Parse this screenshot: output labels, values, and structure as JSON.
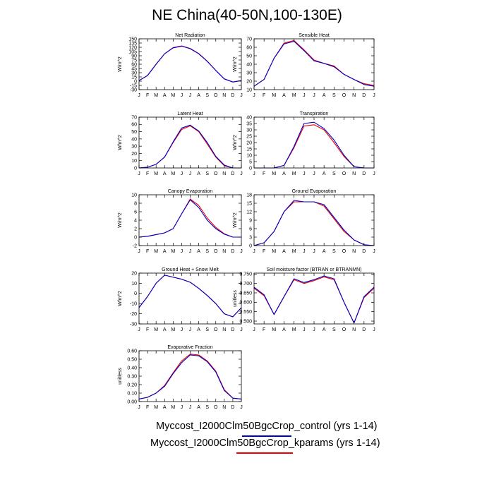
{
  "figure_title": "NE China(40-50N,100-130E)",
  "months": [
    "J",
    "F",
    "M",
    "A",
    "M",
    "J",
    "J",
    "A",
    "S",
    "O",
    "N",
    "D",
    "J"
  ],
  "colors": {
    "control": "#0000cc",
    "kparams": "#ee0000",
    "axis": "#000000"
  },
  "legend": [
    {
      "label": "Myccost_I2000Clm50BgcCrop_control (yrs 1-14)",
      "color": "#0000cc"
    },
    {
      "label": "Myccost_I2000Clm50BgcCrop_kparams (yrs 1-14)",
      "color": "#ee0000"
    }
  ],
  "chart_data": [
    {
      "type": "line",
      "title": "Net Radiation",
      "ylabel": "W/m^2",
      "ylim": [
        -30,
        150
      ],
      "yticks": [
        -30,
        -15,
        0,
        15,
        30,
        45,
        60,
        75,
        90,
        105,
        120,
        135,
        150
      ],
      "series": [
        {
          "name": "Myccost_I2000Clm50BgcCrop_control (yrs 1-14)",
          "values": [
            2,
            20,
            60,
            97,
            118,
            124,
            115,
            97,
            70,
            38,
            8,
            -3,
            2
          ]
        },
        {
          "name": "Myccost_I2000Clm50BgcCrop_kparams (yrs 1-14)",
          "values": [
            2,
            20,
            60,
            97,
            119,
            125,
            116,
            98,
            71,
            38,
            8,
            -3,
            2
          ]
        }
      ]
    },
    {
      "type": "line",
      "title": "Sensible Heat",
      "ylabel": "W/m^2",
      "ylim": [
        10,
        70
      ],
      "yticks": [
        10,
        20,
        30,
        40,
        50,
        60,
        70
      ],
      "series": [
        {
          "name": "Myccost_I2000Clm50BgcCrop_control (yrs 1-14)",
          "values": [
            14,
            22,
            47,
            64,
            67,
            56,
            44,
            41,
            37,
            28,
            22,
            16,
            14
          ]
        },
        {
          "name": "Myccost_I2000Clm50BgcCrop_kparams (yrs 1-14)",
          "values": [
            14,
            22,
            47,
            65,
            68,
            57,
            45,
            41,
            38,
            28,
            22,
            17,
            15
          ]
        }
      ]
    },
    {
      "type": "line",
      "title": "Latent Heat",
      "ylabel": "W/m^2",
      "ylim": [
        0,
        70
      ],
      "yticks": [
        0,
        10,
        20,
        30,
        40,
        50,
        60,
        70
      ],
      "series": [
        {
          "name": "Myccost_I2000Clm50BgcCrop_control (yrs 1-14)",
          "values": [
            0,
            1,
            5,
            15,
            36,
            55,
            59,
            51,
            35,
            16,
            4,
            0,
            0
          ]
        },
        {
          "name": "Myccost_I2000Clm50BgcCrop_kparams (yrs 1-14)",
          "values": [
            0,
            1,
            5,
            15,
            35,
            53,
            58,
            50,
            33,
            15,
            3,
            0,
            0
          ]
        }
      ]
    },
    {
      "type": "line",
      "title": "Transpiration",
      "ylabel": "W/m^2",
      "ylim": [
        0,
        40
      ],
      "yticks": [
        0,
        5,
        10,
        15,
        20,
        25,
        30,
        35,
        40
      ],
      "series": [
        {
          "name": "Myccost_I2000Clm50BgcCrop_control (yrs 1-14)",
          "values": [
            0,
            0,
            0,
            2,
            17,
            35,
            36,
            31,
            22,
            10,
            1,
            0,
            0
          ]
        },
        {
          "name": "Myccost_I2000Clm50BgcCrop_kparams (yrs 1-14)",
          "values": [
            0,
            0,
            0,
            2,
            16,
            33,
            34,
            30,
            20,
            9,
            1,
            0,
            0
          ]
        }
      ]
    },
    {
      "type": "line",
      "title": "Canopy Evaporation",
      "ylabel": "W/m^2",
      "ylim": [
        -2,
        10
      ],
      "yticks": [
        -2,
        0,
        2,
        4,
        6,
        8,
        10
      ],
      "series": [
        {
          "name": "Myccost_I2000Clm50BgcCrop_control (yrs 1-14)",
          "values": [
            0,
            0.2,
            0.6,
            1,
            2,
            5.5,
            8.8,
            7,
            4,
            2,
            0.7,
            0,
            0
          ]
        },
        {
          "name": "Myccost_I2000Clm50BgcCrop_kparams (yrs 1-14)",
          "values": [
            0,
            0.2,
            0.6,
            1,
            2,
            5.5,
            9,
            7.5,
            4.5,
            2.3,
            0.8,
            0,
            0
          ]
        }
      ]
    },
    {
      "type": "line",
      "title": "Ground Evaporation",
      "ylabel": "W/m^2",
      "ylim": [
        0,
        18
      ],
      "yticks": [
        0,
        3,
        6,
        9,
        12,
        15,
        18
      ],
      "series": [
        {
          "name": "Myccost_I2000Clm50BgcCrop_control (yrs 1-14)",
          "values": [
            0,
            1,
            5,
            12,
            16,
            15.5,
            15.5,
            14.5,
            10,
            5.5,
            2,
            0.3,
            0
          ]
        },
        {
          "name": "Myccost_I2000Clm50BgcCrop_kparams (yrs 1-14)",
          "values": [
            0,
            1,
            5,
            12,
            15.5,
            15.5,
            15.5,
            14,
            9.5,
            5,
            2,
            0.3,
            0
          ]
        }
      ]
    },
    {
      "type": "line",
      "title": "Ground Heat + Snow Melt",
      "ylabel": "W/m^2",
      "ylim": [
        -30,
        20
      ],
      "yticks": [
        -30,
        -20,
        -10,
        0,
        10,
        20
      ],
      "series": [
        {
          "name": "Myccost_I2000Clm50BgcCrop_control (yrs 1-14)",
          "values": [
            -14,
            -3,
            10,
            18,
            16,
            14,
            11,
            5,
            -2,
            -10,
            -20,
            -23,
            -14
          ]
        },
        {
          "name": "Myccost_I2000Clm50BgcCrop_kparams (yrs 1-14)",
          "values": [
            -14,
            -3,
            10,
            18,
            16,
            14,
            11,
            5,
            -2,
            -10,
            -20,
            -23,
            -14
          ]
        }
      ]
    },
    {
      "type": "line",
      "title": "Soil moisture factor (BTRAN or BTRANMN)",
      "ylabel": "unitless",
      "ylim": [
        0.485,
        0.755
      ],
      "yticks": [
        0.5,
        0.55,
        0.6,
        0.65,
        0.7,
        0.75
      ],
      "yticklabels": [
        "0.500",
        "0.550",
        "0.600",
        "0.650",
        "0.700",
        "0.750"
      ],
      "series": [
        {
          "name": "Myccost_I2000Clm50BgcCrop_control (yrs 1-14)",
          "values": [
            0.68,
            0.64,
            0.535,
            0.63,
            0.725,
            0.705,
            0.72,
            0.74,
            0.725,
            0.6,
            0.49,
            0.63,
            0.68
          ]
        },
        {
          "name": "Myccost_I2000Clm50BgcCrop_kparams (yrs 1-14)",
          "values": [
            0.675,
            0.635,
            0.535,
            0.63,
            0.72,
            0.7,
            0.715,
            0.735,
            0.72,
            0.6,
            0.49,
            0.625,
            0.675
          ]
        }
      ]
    },
    {
      "type": "line",
      "title": "Evaporative Fraction",
      "ylabel": "unitless",
      "ylim": [
        0,
        0.6
      ],
      "yticks": [
        0,
        0.1,
        0.2,
        0.3,
        0.4,
        0.5,
        0.6
      ],
      "yticklabels": [
        "0.00",
        "0.10",
        "0.20",
        "0.30",
        "0.40",
        "0.50",
        "0.60"
      ],
      "series": [
        {
          "name": "Myccost_I2000Clm50BgcCrop_control (yrs 1-14)",
          "values": [
            0.03,
            0.05,
            0.1,
            0.18,
            0.33,
            0.46,
            0.55,
            0.54,
            0.47,
            0.35,
            0.13,
            0.04,
            0.03
          ]
        },
        {
          "name": "Myccost_I2000Clm50BgcCrop_kparams (yrs 1-14)",
          "values": [
            0.03,
            0.05,
            0.1,
            0.19,
            0.34,
            0.48,
            0.56,
            0.55,
            0.48,
            0.36,
            0.14,
            0.04,
            0.03
          ]
        }
      ]
    }
  ]
}
